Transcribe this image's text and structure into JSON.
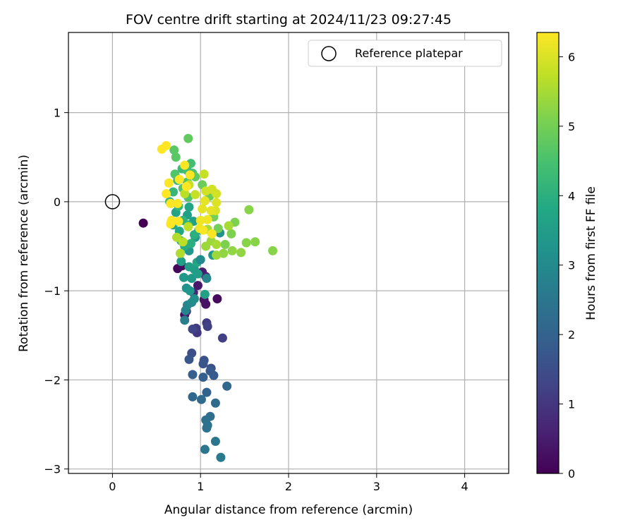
{
  "chart_data": {
    "type": "scatter",
    "title": "FOV centre drift starting at 2024/11/23 09:27:45",
    "xlabel": "Angular distance from reference (arcmin)",
    "ylabel": "Rotation from reference (arcmin)",
    "xlim": [
      -0.5,
      4.5
    ],
    "ylim": [
      -3.05,
      1.9
    ],
    "xticks": [
      0,
      1,
      2,
      3,
      4
    ],
    "yticks": [
      -3,
      -2,
      -1,
      0,
      1
    ],
    "grid": true,
    "legend": {
      "placement": "top-right",
      "entries": [
        "Reference platepar"
      ]
    },
    "reference_point": {
      "x": 0,
      "y": 0
    },
    "colorbar": {
      "label": "Hours from first FF file",
      "colormap": "viridis",
      "range": [
        0,
        6.35
      ],
      "ticks": [
        0,
        1,
        2,
        3,
        4,
        5,
        6
      ]
    },
    "series": [
      {
        "columns": [
          "x",
          "y",
          "hours"
        ],
        "points": [
          [
            0.35,
            -0.24,
            0.0
          ],
          [
            0.74,
            -0.75,
            0.1
          ],
          [
            0.79,
            -0.72,
            0.2
          ],
          [
            0.82,
            -1.27,
            0.2
          ],
          [
            1.04,
            -1.1,
            0.3
          ],
          [
            1.06,
            -1.15,
            0.3
          ],
          [
            1.19,
            -1.09,
            0.2
          ],
          [
            0.97,
            -0.94,
            0.4
          ],
          [
            1.02,
            -0.79,
            0.5
          ],
          [
            1.06,
            -0.84,
            0.6
          ],
          [
            0.92,
            -1.02,
            0.7
          ],
          [
            0.84,
            -1.23,
            0.8
          ],
          [
            0.96,
            -1.47,
            1.0
          ],
          [
            0.95,
            -1.42,
            1.1
          ],
          [
            1.07,
            -1.36,
            1.1
          ],
          [
            1.08,
            -1.4,
            1.2
          ],
          [
            0.91,
            -1.43,
            1.3
          ],
          [
            1.25,
            -1.53,
            1.2
          ],
          [
            0.9,
            -1.7,
            1.5
          ],
          [
            1.12,
            -1.87,
            1.5
          ],
          [
            1.04,
            -1.78,
            1.6
          ],
          [
            0.87,
            -1.77,
            1.7
          ],
          [
            1.03,
            -1.82,
            1.7
          ],
          [
            1.11,
            -1.9,
            1.8
          ],
          [
            1.15,
            -1.95,
            1.8
          ],
          [
            0.91,
            -1.94,
            1.9
          ],
          [
            1.03,
            -1.97,
            1.9
          ],
          [
            1.07,
            -2.14,
            2.0
          ],
          [
            1.3,
            -2.07,
            2.1
          ],
          [
            0.91,
            -2.19,
            2.1
          ],
          [
            1.01,
            -2.22,
            2.2
          ],
          [
            1.17,
            -2.26,
            2.2
          ],
          [
            1.11,
            -2.41,
            2.3
          ],
          [
            1.06,
            -2.45,
            2.3
          ],
          [
            1.08,
            -2.51,
            2.4
          ],
          [
            1.07,
            -2.54,
            2.4
          ],
          [
            1.17,
            -2.69,
            2.5
          ],
          [
            1.05,
            -2.78,
            2.5
          ],
          [
            1.23,
            -2.87,
            2.6
          ],
          [
            0.82,
            -1.33,
            2.7
          ],
          [
            0.83,
            -1.22,
            2.8
          ],
          [
            0.85,
            -1.16,
            2.9
          ],
          [
            0.9,
            -1.13,
            3.0
          ],
          [
            0.93,
            -1.09,
            3.1
          ],
          [
            0.84,
            -0.97,
            3.2
          ],
          [
            0.88,
            -1.0,
            3.3
          ],
          [
            0.81,
            -0.85,
            3.4
          ],
          [
            0.9,
            -0.86,
            3.4
          ],
          [
            0.97,
            -0.81,
            3.5
          ],
          [
            0.93,
            -0.76,
            3.5
          ],
          [
            0.87,
            -0.73,
            3.6
          ],
          [
            0.78,
            -0.67,
            3.6
          ],
          [
            0.96,
            -0.68,
            3.7
          ],
          [
            1.05,
            -1.04,
            3.6
          ],
          [
            1.07,
            -0.86,
            2.9
          ],
          [
            1.0,
            -0.65,
            3.0
          ],
          [
            1.22,
            -0.35,
            3.2
          ],
          [
            1.14,
            -0.6,
            3.3
          ],
          [
            0.87,
            -0.55,
            3.3
          ],
          [
            0.94,
            -0.4,
            3.4
          ],
          [
            0.98,
            -0.32,
            3.5
          ],
          [
            0.92,
            -0.22,
            3.6
          ],
          [
            0.85,
            -0.15,
            3.6
          ],
          [
            0.87,
            -0.06,
            3.7
          ],
          [
            0.72,
            -0.12,
            3.7
          ],
          [
            0.69,
            -0.26,
            3.8
          ],
          [
            0.76,
            -0.33,
            3.8
          ],
          [
            0.78,
            -0.44,
            3.9
          ],
          [
            0.82,
            -0.5,
            3.9
          ],
          [
            0.89,
            -0.47,
            4.0
          ],
          [
            0.93,
            -0.37,
            4.0
          ],
          [
            0.86,
            -0.26,
            4.1
          ],
          [
            0.8,
            -0.21,
            4.1
          ],
          [
            0.75,
            -0.05,
            4.2
          ],
          [
            0.65,
            0.0,
            4.2
          ],
          [
            0.69,
            0.11,
            4.2
          ],
          [
            0.74,
            0.24,
            4.3
          ],
          [
            0.79,
            0.37,
            4.3
          ],
          [
            0.85,
            0.35,
            4.4
          ],
          [
            0.89,
            0.43,
            4.4
          ],
          [
            0.91,
            0.32,
            4.5
          ],
          [
            0.85,
            0.22,
            4.5
          ],
          [
            0.8,
            0.15,
            4.6
          ],
          [
            0.86,
            0.05,
            4.6
          ],
          [
            0.71,
            0.31,
            4.6
          ],
          [
            0.72,
            0.5,
            4.7
          ],
          [
            0.7,
            0.58,
            4.7
          ],
          [
            0.86,
            0.71,
            4.8
          ],
          [
            0.94,
            0.28,
            4.8
          ],
          [
            1.02,
            0.19,
            4.9
          ],
          [
            1.1,
            0.06,
            4.9
          ],
          [
            1.15,
            -0.17,
            5.0
          ],
          [
            1.2,
            -0.3,
            5.0
          ],
          [
            1.28,
            -0.48,
            5.1
          ],
          [
            1.35,
            -0.36,
            5.1
          ],
          [
            1.39,
            -0.23,
            5.1
          ],
          [
            1.55,
            -0.09,
            5.2
          ],
          [
            1.52,
            -0.46,
            5.2
          ],
          [
            1.62,
            -0.45,
            5.2
          ],
          [
            1.82,
            -0.55,
            5.2
          ],
          [
            1.46,
            -0.57,
            5.3
          ],
          [
            1.36,
            -0.55,
            5.3
          ],
          [
            1.26,
            -0.58,
            5.3
          ],
          [
            1.18,
            -0.6,
            5.4
          ],
          [
            1.12,
            -0.44,
            5.4
          ],
          [
            1.06,
            -0.5,
            5.4
          ],
          [
            1.08,
            -0.31,
            5.5
          ],
          [
            1.18,
            -0.48,
            5.5
          ],
          [
            1.32,
            -0.27,
            5.5
          ],
          [
            0.77,
            -0.58,
            5.6
          ],
          [
            0.73,
            -0.4,
            5.6
          ],
          [
            0.8,
            -0.45,
            5.7
          ],
          [
            0.86,
            -0.28,
            5.7
          ],
          [
            0.82,
            0.09,
            5.7
          ],
          [
            0.87,
            0.19,
            5.8
          ],
          [
            0.94,
            0.08,
            5.8
          ],
          [
            1.04,
            0.31,
            5.8
          ],
          [
            1.06,
            0.12,
            5.9
          ],
          [
            1.13,
            0.14,
            5.9
          ],
          [
            1.18,
            0.09,
            5.9
          ],
          [
            1.18,
            -0.01,
            6.0
          ],
          [
            1.17,
            -0.1,
            6.0
          ],
          [
            1.12,
            -0.1,
            6.1
          ],
          [
            1.02,
            -0.08,
            6.1
          ],
          [
            1.05,
            0.01,
            6.1
          ],
          [
            1.0,
            -0.21,
            6.2
          ],
          [
            0.99,
            -0.3,
            6.2
          ],
          [
            1.08,
            -0.2,
            6.2
          ],
          [
            1.13,
            -0.36,
            6.3
          ],
          [
            1.03,
            -0.32,
            6.3
          ],
          [
            0.88,
            0.3,
            6.3
          ],
          [
            0.82,
            0.41,
            6.3
          ],
          [
            0.84,
            0.17,
            6.35
          ],
          [
            0.76,
            0.25,
            6.35
          ],
          [
            0.64,
            0.21,
            6.35
          ],
          [
            0.61,
            0.09,
            6.35
          ],
          [
            0.66,
            -0.02,
            6.35
          ],
          [
            0.74,
            -0.02,
            6.35
          ],
          [
            0.66,
            -0.25,
            6.35
          ],
          [
            0.67,
            -0.21,
            6.35
          ],
          [
            0.75,
            -0.22,
            6.35
          ],
          [
            0.56,
            0.59,
            6.35
          ],
          [
            0.61,
            0.63,
            6.35
          ]
        ]
      }
    ]
  }
}
